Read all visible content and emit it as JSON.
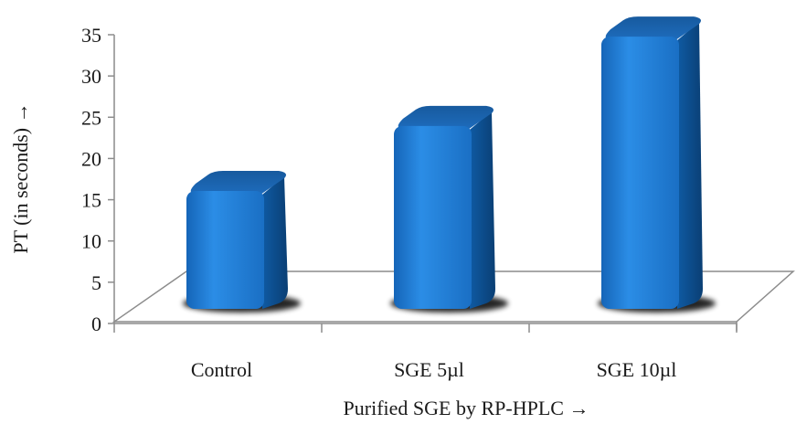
{
  "chart_data": {
    "type": "bar",
    "categories": [
      "Control",
      "SGE 5µl",
      "SGE 10µl"
    ],
    "values": [
      14.5,
      22.5,
      33.5
    ],
    "xlabel": "Purified SGE by RP-HPLC →",
    "ylabel": "PT (in seconds) →",
    "ylim": [
      0,
      35
    ],
    "yticks": [
      0,
      5,
      10,
      15,
      20,
      25,
      30,
      35
    ],
    "grid": false,
    "legend": "none",
    "style": "3d-column",
    "colors": {
      "bar_front": "#1a78cf",
      "bar_side": "#0d4f8f",
      "bar_top": "#1b63ad",
      "floor_stroke": "#8c8c8c",
      "shadow": "#000000"
    }
  }
}
